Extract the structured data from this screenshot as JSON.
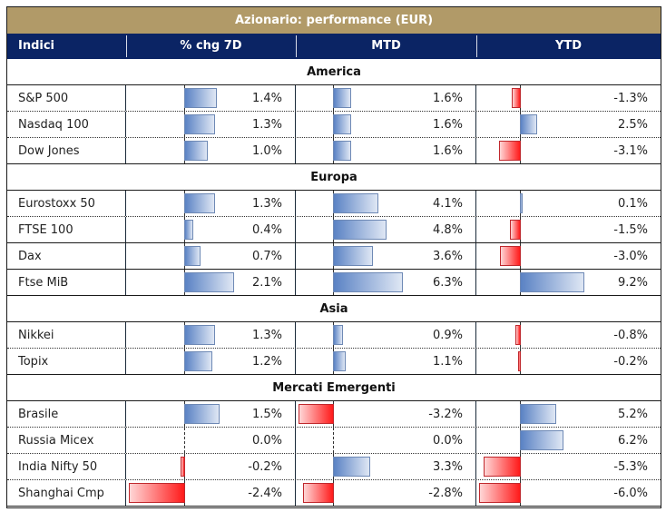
{
  "title": "Azionario: performance (EUR)",
  "headers": [
    "Indici",
    "% chg 7D",
    "MTD",
    "YTD"
  ],
  "colors": {
    "title_bg": "#b19a68",
    "header_bg": "#0b2464",
    "positive_bar": "#5a82c4",
    "negative_bar": "#ff1a1a"
  },
  "sections": [
    {
      "name": "America",
      "rows": [
        {
          "index": "S&P 500",
          "chg7d": 1.4,
          "chg7d_label": "1.4%",
          "mtd": 1.6,
          "mtd_label": "1.6%",
          "ytd": -1.3,
          "ytd_label": "-1.3%"
        },
        {
          "index": "Nasdaq 100",
          "chg7d": 1.3,
          "chg7d_label": "1.3%",
          "mtd": 1.6,
          "mtd_label": "1.6%",
          "ytd": 2.5,
          "ytd_label": "2.5%"
        },
        {
          "index": "Dow Jones",
          "chg7d": 1.0,
          "chg7d_label": "1.0%",
          "mtd": 1.6,
          "mtd_label": "1.6%",
          "ytd": -3.1,
          "ytd_label": "-3.1%"
        }
      ]
    },
    {
      "name": "Europa",
      "rows": [
        {
          "index": "Eurostoxx 50",
          "chg7d": 1.3,
          "chg7d_label": "1.3%",
          "mtd": 4.1,
          "mtd_label": "4.1%",
          "ytd": 0.1,
          "ytd_label": "0.1%"
        },
        {
          "index": "FTSE 100",
          "chg7d": 0.4,
          "chg7d_label": "0.4%",
          "mtd": 4.8,
          "mtd_label": "4.8%",
          "ytd": -1.5,
          "ytd_label": "-1.5%"
        },
        {
          "index": "Dax",
          "chg7d": 0.7,
          "chg7d_label": "0.7%",
          "mtd": 3.6,
          "mtd_label": "3.6%",
          "ytd": -3.0,
          "ytd_label": "-3.0%"
        },
        {
          "index": "Ftse MiB",
          "chg7d": 2.1,
          "chg7d_label": "2.1%",
          "mtd": 6.3,
          "mtd_label": "6.3%",
          "ytd": 9.2,
          "ytd_label": "9.2%"
        }
      ]
    },
    {
      "name": "Asia",
      "rows": [
        {
          "index": "Nikkei",
          "chg7d": 1.3,
          "chg7d_label": "1.3%",
          "mtd": 0.9,
          "mtd_label": "0.9%",
          "ytd": -0.8,
          "ytd_label": "-0.8%"
        },
        {
          "index": "Topix",
          "chg7d": 1.2,
          "chg7d_label": "1.2%",
          "mtd": 1.1,
          "mtd_label": "1.1%",
          "ytd": -0.2,
          "ytd_label": "-0.2%"
        }
      ]
    },
    {
      "name": "Mercati Emergenti",
      "rows": [
        {
          "index": "Brasile",
          "chg7d": 1.5,
          "chg7d_label": "1.5%",
          "mtd": -3.2,
          "mtd_label": "-3.2%",
          "ytd": 5.2,
          "ytd_label": "5.2%"
        },
        {
          "index": "Russia Micex",
          "chg7d": 0.0,
          "chg7d_label": "0.0%",
          "mtd": 0.0,
          "mtd_label": "0.0%",
          "ytd": 6.2,
          "ytd_label": "6.2%"
        },
        {
          "index": "India Nifty 50",
          "chg7d": -0.2,
          "chg7d_label": "-0.2%",
          "mtd": 3.3,
          "mtd_label": "3.3%",
          "ytd": -5.3,
          "ytd_label": "-5.3%"
        },
        {
          "index": "Shanghai Cmp",
          "chg7d": -2.4,
          "chg7d_label": "-2.4%",
          "mtd": -2.8,
          "mtd_label": "-2.8%",
          "ytd": -6.0,
          "ytd_label": "-6.0%"
        }
      ]
    }
  ]
}
